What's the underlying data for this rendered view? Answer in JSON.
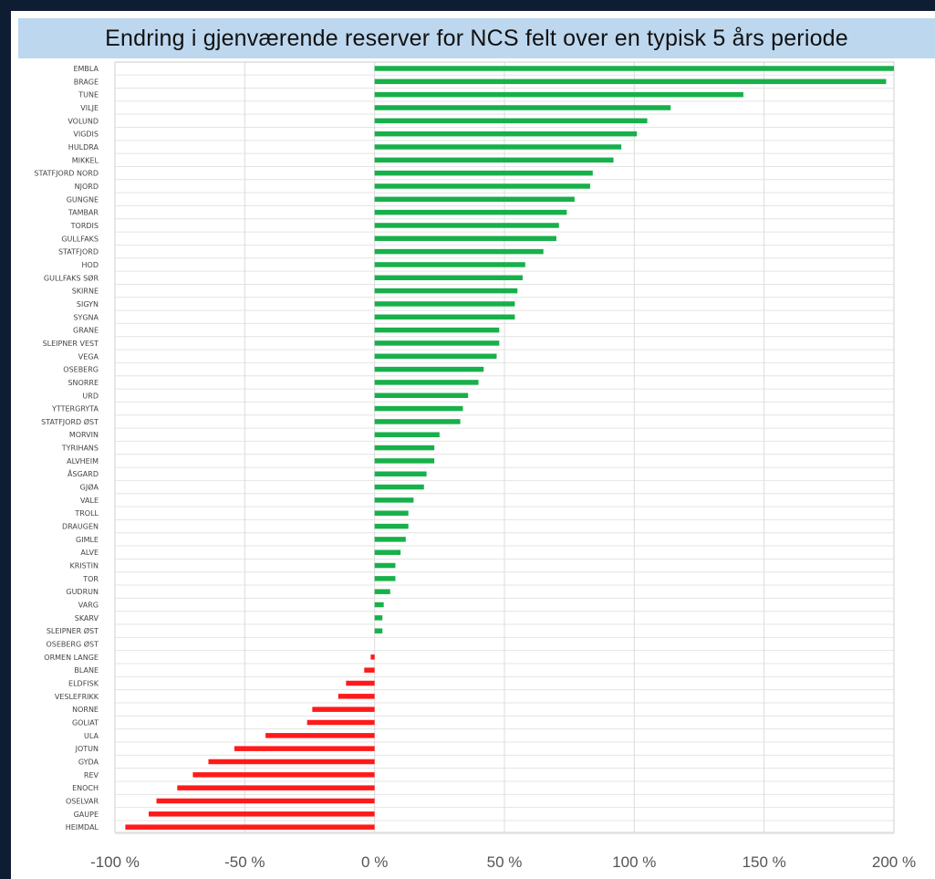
{
  "chart_data": {
    "type": "bar",
    "orientation": "horizontal",
    "title": "Endring i gjenværende reserver for NCS felt over en typisk 5 års periode",
    "xlabel": "",
    "ylabel": "",
    "xlim": [
      -100,
      200
    ],
    "x_ticks": [
      -100,
      -50,
      0,
      50,
      100,
      150,
      200
    ],
    "x_tick_labels": [
      "-100 %",
      "-50 %",
      "0 %",
      "50 %",
      "100 %",
      "150 %",
      "200 %"
    ],
    "grid": true,
    "legend": "none",
    "colors": {
      "positive": "#17b04a",
      "negative": "#ff1a1a"
    },
    "categories": [
      "EMBLA",
      "BRAGE",
      "TUNE",
      "VILJE",
      "VOLUND",
      "VIGDIS",
      "HULDRA",
      "MIKKEL",
      "STATFJORD NORD",
      "NJORD",
      "GUNGNE",
      "TAMBAR",
      "TORDIS",
      "GULLFAKS",
      "STATFJORD",
      "HOD",
      "GULLFAKS SØR",
      "SKIRNE",
      "SIGYN",
      "SYGNA",
      "GRANE",
      "SLEIPNER VEST",
      "VEGA",
      "OSEBERG",
      "SNORRE",
      "URD",
      "YTTERGRYTA",
      "STATFJORD ØST",
      "MORVIN",
      "TYRIHANS",
      "ALVHEIM",
      "ÅSGARD",
      "GJØA",
      "VALE",
      "TROLL",
      "DRAUGEN",
      "GIMLE",
      "ALVE",
      "KRISTIN",
      "TOR",
      "GUDRUN",
      "VARG",
      "SKARV",
      "SLEIPNER ØST",
      "OSEBERG ØST",
      "ORMEN LANGE",
      "BLANE",
      "ELDFISK",
      "VESLEFRIKK",
      "NORNE",
      "GOLIAT",
      "ULA",
      "JOTUN",
      "GYDA",
      "REV",
      "ENOCH",
      "OSELVAR",
      "GAUPE",
      "HEIMDAL"
    ],
    "values": [
      200,
      197,
      142,
      114,
      105,
      101,
      95,
      92,
      84,
      83,
      77,
      74,
      71,
      70,
      65,
      58,
      57,
      55,
      54,
      54,
      48,
      48,
      47,
      42,
      40,
      36,
      34,
      33,
      25,
      23,
      23,
      20,
      19,
      15,
      13,
      13,
      12,
      10,
      8,
      8,
      6,
      3.5,
      3,
      3,
      0,
      -1.5,
      -4,
      -11,
      -14,
      -24,
      -26,
      -42,
      -54,
      -64,
      -70,
      -76,
      -84,
      -87,
      -96
    ]
  }
}
